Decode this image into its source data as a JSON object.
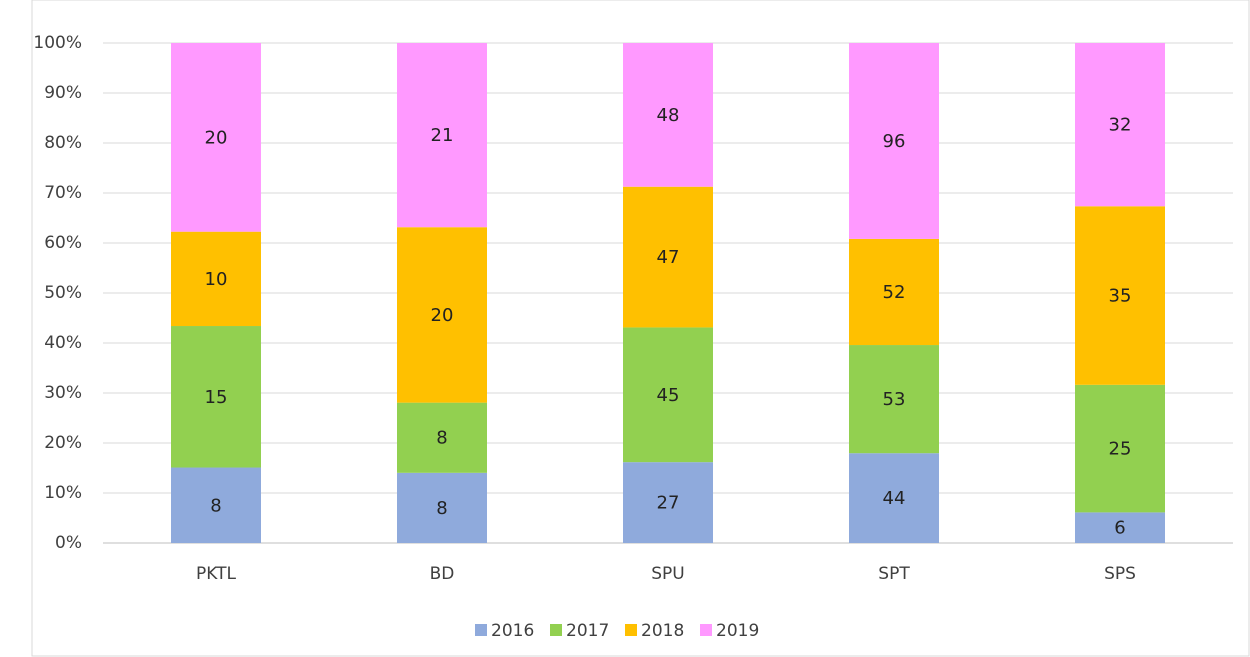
{
  "chart_data": {
    "type": "bar",
    "stacking": "percent",
    "categories": [
      "PKTL",
      "BD",
      "SPU",
      "SPT",
      "SPS"
    ],
    "series": [
      {
        "name": "2016",
        "color": "#8faadc",
        "values": [
          8,
          8,
          27,
          44,
          6
        ]
      },
      {
        "name": "2017",
        "color": "#92d050",
        "values": [
          15,
          8,
          45,
          53,
          25
        ]
      },
      {
        "name": "2018",
        "color": "#ffc000",
        "values": [
          10,
          20,
          47,
          52,
          35
        ]
      },
      {
        "name": "2019",
        "color": "#ff99ff",
        "values": [
          20,
          21,
          48,
          96,
          32
        ]
      }
    ],
    "ylim": [
      0,
      100
    ],
    "yticks": [
      {
        "value": 0,
        "label": "0%"
      },
      {
        "value": 10,
        "label": "10%"
      },
      {
        "value": 20,
        "label": "20%"
      },
      {
        "value": 30,
        "label": "30%"
      },
      {
        "value": 40,
        "label": "40%"
      },
      {
        "value": 50,
        "label": "50%"
      },
      {
        "value": 60,
        "label": "60%"
      },
      {
        "value": 70,
        "label": "70%"
      },
      {
        "value": 80,
        "label": "80%"
      },
      {
        "value": 90,
        "label": "90%"
      },
      {
        "value": 100,
        "label": "100%"
      }
    ],
    "grid": true,
    "legend": "bottom"
  }
}
